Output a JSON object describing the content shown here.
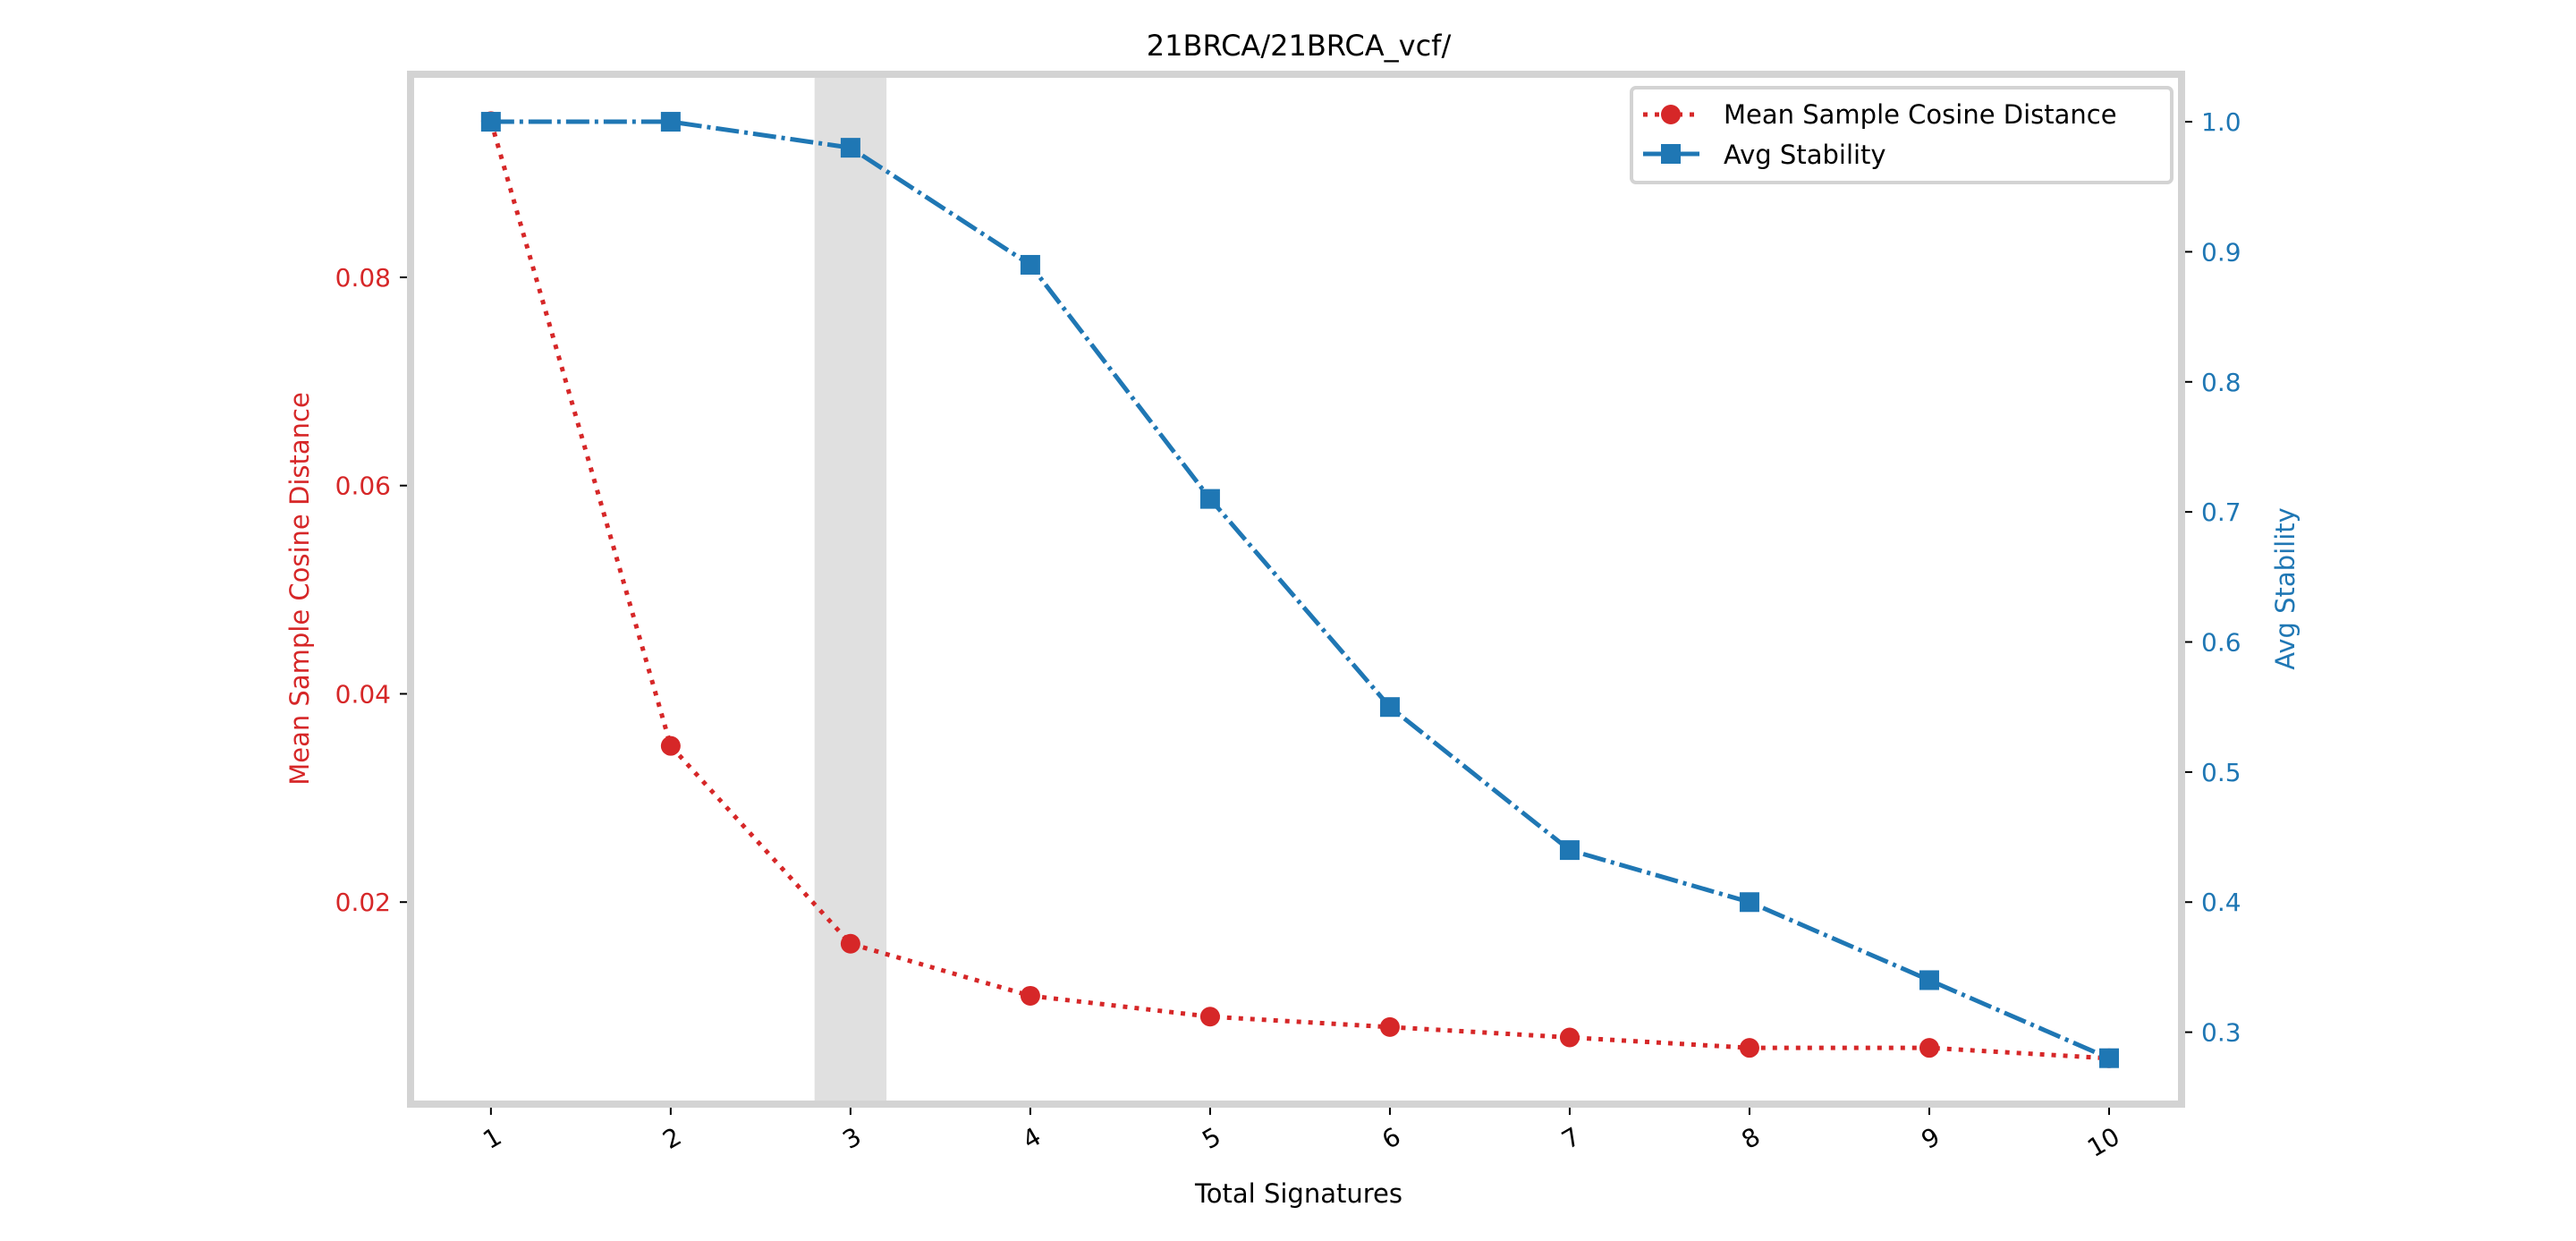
{
  "chart_data": {
    "type": "line",
    "title": "21BRCA/21BRCA_vcf/",
    "xlabel": "Total Signatures",
    "ylabel_left": "Mean Sample Cosine Distance",
    "ylabel_right": "Avg Stability",
    "x": [
      1,
      2,
      3,
      4,
      5,
      6,
      7,
      8,
      9,
      10
    ],
    "x_tick_labels": [
      "1",
      "2",
      "3",
      "4",
      "5",
      "6",
      "7",
      "8",
      "9",
      "10"
    ],
    "xlim": [
      0.553,
      10.403
    ],
    "highlight_span": [
      2.8,
      3.2
    ],
    "series": [
      {
        "name": "Mean Sample Cosine Distance",
        "axis": "left",
        "color": "#d62728",
        "linestyle": "dotted",
        "marker": "circle",
        "values": [
          0.095,
          0.035,
          0.016,
          0.011,
          0.009,
          0.008,
          0.007,
          0.006,
          0.006,
          0.005
        ]
      },
      {
        "name": "Avg Stability",
        "axis": "right",
        "color": "#1f77b4",
        "linestyle": "dashdot",
        "marker": "square",
        "values": [
          1.0,
          1.0,
          0.98,
          0.89,
          0.71,
          0.55,
          0.44,
          0.4,
          0.34,
          0.28
        ]
      }
    ],
    "ylim_left": [
      0.0006,
      0.0995
    ],
    "y_ticks_left": [
      "0.02",
      "0.04",
      "0.06",
      "0.08"
    ],
    "ylim_right": [
      0.2447,
      1.0365
    ],
    "y_ticks_right": [
      "0.3",
      "0.4",
      "0.5",
      "0.6",
      "0.7",
      "0.8",
      "0.9",
      "1.0"
    ],
    "left_axis_color": "#d62728",
    "right_axis_color": "#1f77b4",
    "frame_color": "#d3d3d3",
    "highlight_color": "#e0e0e0",
    "grid": false,
    "legend_position": "top-right"
  }
}
